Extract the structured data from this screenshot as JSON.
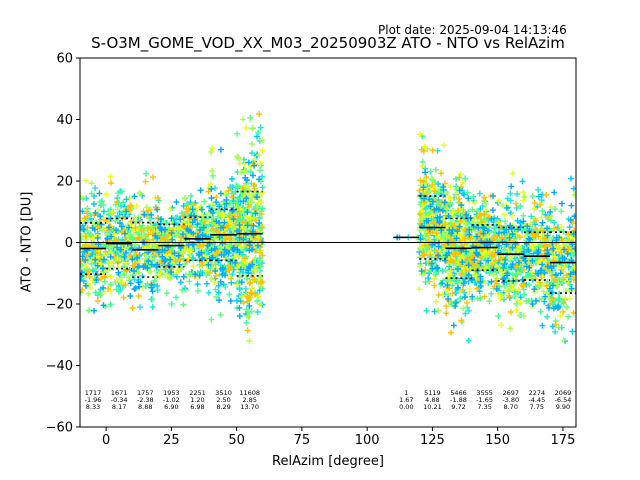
{
  "header": {
    "plot_date": "Plot date: 2025-09-04 14:13:46",
    "title": "S-O3M_GOME_VOD_XX_M03_20250903Z ATO - NTO vs RelAzim"
  },
  "chart_data": {
    "type": "scatter",
    "title": "S-O3M_GOME_VOD_XX_M03_20250903Z ATO - NTO vs RelAzim",
    "xlabel": "RelAzim [degree]",
    "ylabel": "ATO - NTO [DU]",
    "xlim": [
      -10,
      180
    ],
    "ylim": [
      -60,
      60
    ],
    "xticks": [
      0,
      25,
      50,
      75,
      100,
      125,
      150,
      175
    ],
    "yticks": [
      -60,
      -40,
      -20,
      0,
      20,
      40,
      60
    ],
    "zero_line": 0,
    "bin_stats": [
      {
        "x": -5,
        "count": "1717",
        "mean": "-1.96",
        "std": "8.33",
        "mean_val": -1.96,
        "std_val": 8.33
      },
      {
        "x": 5,
        "count": "1671",
        "mean": "-0.34",
        "std": "8.17",
        "mean_val": -0.34,
        "std_val": 8.17
      },
      {
        "x": 15,
        "count": "1757",
        "mean": "-2.38",
        "std": "8.88",
        "mean_val": -2.38,
        "std_val": 8.88
      },
      {
        "x": 25,
        "count": "1953",
        "mean": "-1.02",
        "std": "6.90",
        "mean_val": -1.02,
        "std_val": 6.9
      },
      {
        "x": 35,
        "count": "2251",
        "mean": "1.20",
        "std": "6.98",
        "mean_val": 1.2,
        "std_val": 6.98
      },
      {
        "x": 45,
        "count": "3510",
        "mean": "2.50",
        "std": "8.29",
        "mean_val": 2.5,
        "std_val": 8.29
      },
      {
        "x": 55,
        "count": "11608",
        "mean": "2.85",
        "std": "13.70",
        "mean_val": 2.85,
        "std_val": 13.7
      },
      {
        "x": 115,
        "count": "1",
        "mean": "1.67",
        "std": "0.00",
        "mean_val": 1.67,
        "std_val": 0.0
      },
      {
        "x": 125,
        "count": "5119",
        "mean": "4.88",
        "std": "10.21",
        "mean_val": 4.88,
        "std_val": 10.21
      },
      {
        "x": 135,
        "count": "5466",
        "mean": "-1.88",
        "std": "9.72",
        "mean_val": -1.88,
        "std_val": 9.72
      },
      {
        "x": 145,
        "count": "3555",
        "mean": "-1.65",
        "std": "7.35",
        "mean_val": -1.65,
        "std_val": 7.35
      },
      {
        "x": 155,
        "count": "2697",
        "mean": "-3.80",
        "std": "8.70",
        "mean_val": -3.8,
        "std_val": 8.7
      },
      {
        "x": 165,
        "count": "2274",
        "mean": "-4.45",
        "std": "7.75",
        "mean_val": -4.45,
        "std_val": 7.75
      },
      {
        "x": 175,
        "count": "2069",
        "mean": "-6.54",
        "std": "9.90",
        "mean_val": -6.54,
        "std_val": 9.9
      }
    ],
    "point_colors": [
      "#00c8ff",
      "#1ee6d6",
      "#3cff9c",
      "#5cff7a",
      "#a8ff4c",
      "#e6ff1e",
      "#ffc000",
      "#00a8ff"
    ]
  }
}
